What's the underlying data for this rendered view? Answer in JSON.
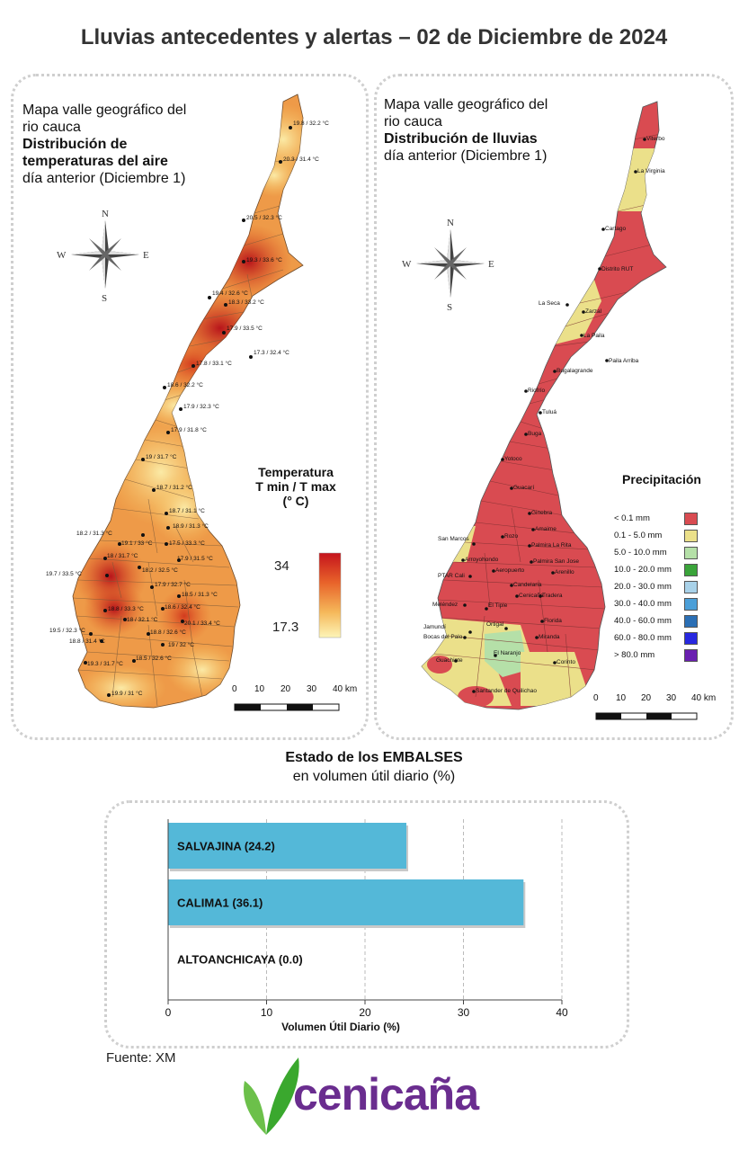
{
  "title": "Lluvias antecedentes y alertas – 02 de Diciembre de 2024",
  "temp_panel": {
    "title_line1": "Mapa valle geográfico del",
    "title_line2": "rio cauca",
    "title_line3": "Distribución de",
    "title_line4": "temperaturas del aire",
    "title_line5": "día anterior (Diciembre 1)",
    "legend_title_1": "Temperatura",
    "legend_title_2": "T min / T max",
    "legend_title_3": "(° C)",
    "legend_max": "34",
    "legend_min": "17.3",
    "scale_labels": [
      "0",
      "10",
      "20",
      "30",
      "40 km"
    ],
    "compass": {
      "n": "N",
      "s": "S",
      "e": "E",
      "w": "W"
    },
    "stations": [
      "19.8 / 32.2 °C",
      "20.3 / 31.4 °C",
      "20.5 / 32.3 °C",
      "19.3 / 33.6 °C",
      "19.4 / 32.6 °C",
      "18.3 / 33.2 °C",
      "17.9 / 33.5 °C",
      "17.3 / 32.4 °C",
      "17.8 / 33.1 °C",
      "18.6 / 32.2 °C",
      "17.9 / 32.3 °C",
      "17.9 / 31.8 °C",
      "19 / 31.7 °C",
      "18.7 / 31.2 °C",
      "18.7 / 31.1 °C",
      "18.9 / 31.3 °C",
      "18.2 / 31.3 °C",
      "19.1 / 33 °C",
      "17.5 / 33.3 °C",
      "18 / 31.7 °C",
      "18.2 / 32.5 °C",
      "17.9 / 31.5 °C",
      "19.7 / 33.5 °C",
      "17.9 / 32.7 °C",
      "18.5 / 31.3 °C",
      "18.8 / 33.3 °C",
      "18.6 / 32.4 °C",
      "18 / 32.1 °C",
      "20.1 / 33.4 °C",
      "19.5 / 32.3 °C",
      "18.8 / 31.4 °C",
      "18.8 / 32.6 °C",
      "19 / 32 °C",
      "19.3 / 31.7 °C",
      "18.5 / 32.6 °C",
      "19.9 / 31 °C"
    ]
  },
  "rain_panel": {
    "title_line1": "Mapa valle geográfico del",
    "title_line2": "rio cauca",
    "title_line3": "Distribución de lluvias",
    "title_line4": "día anterior (Diciembre 1)",
    "legend_title": "Precipitación",
    "legend": [
      {
        "label": "< 0.1 mm",
        "color": "#d94b51"
      },
      {
        "label": "0.1 - 5.0 mm",
        "color": "#ebe08a"
      },
      {
        "label": "5.0 - 10.0 mm",
        "color": "#b5e0a8"
      },
      {
        "label": "10.0 - 20.0 mm",
        "color": "#3aa43a"
      },
      {
        "label": "20.0 - 30.0 mm",
        "color": "#a9d2e9"
      },
      {
        "label": "30.0 - 40.0 mm",
        "color": "#4b9fd8"
      },
      {
        "label": "40.0 - 60.0 mm",
        "color": "#2b6fb5"
      },
      {
        "label": "60.0 - 80.0 mm",
        "color": "#2828e0"
      },
      {
        "label": "> 80.0 mm",
        "color": "#6a1fb0"
      }
    ],
    "scale_labels": [
      "0",
      "10",
      "20",
      "30",
      "40 km"
    ],
    "compass": {
      "n": "N",
      "s": "S",
      "e": "E",
      "w": "W"
    },
    "places": [
      "Viterbo",
      "La Virginia",
      "Cartago",
      "Distrito RUT",
      "La Seca",
      "Zarzal",
      "La Paila",
      "Paila Arriba",
      "Bugalagrande",
      "Riofrío",
      "Tuluá",
      "Buga",
      "Yotoco",
      "Guacarí",
      "Ginebra",
      "Amaime",
      "San Marcos",
      "Rozo",
      "Palmira La Rita",
      "Palmira San Jose",
      "Arroyohondo",
      "Aeropuerto",
      "Arenillo",
      "PTAR Cali",
      "Candelaria",
      "Cenicaña",
      "Tradera",
      "Meléndez",
      "El Tiple",
      "Florida",
      "Jamundí",
      "Bocas del Palo",
      "Ortigal",
      "Miranda",
      "Guachinte",
      "El Naranjo",
      "Corinto",
      "Santander de Quilichao"
    ]
  },
  "reservoirs": {
    "title_bold": "Estado de los EMBALSES",
    "subtitle": "en volumen útil diario (%)",
    "xlabel": "Volumen Útil Diario (%)",
    "ticks": [
      "0",
      "10",
      "20",
      "30",
      "40"
    ]
  },
  "chart_data": {
    "type": "bar",
    "orientation": "horizontal",
    "title": "Estado de los EMBALSES",
    "subtitle": "en volumen útil diario (%)",
    "categories": [
      "SALVAJINA",
      "CALIMA1",
      "ALTOANCHICAYA"
    ],
    "bar_labels": [
      "SALVAJINA (24.2)",
      "CALIMA1 (36.1)",
      "ALTOANCHICAYA (0.0)"
    ],
    "values": [
      24.2,
      36.1,
      0.0
    ],
    "xlabel": "Volumen Útil Diario (%)",
    "xlim": [
      0,
      40
    ],
    "xticks": [
      0,
      10,
      20,
      30,
      40
    ],
    "grid": "vertical dashed",
    "bar_color": "#54b8d8"
  },
  "footer": {
    "source": "Fuente: XM",
    "logo_text": "cenicaña"
  }
}
